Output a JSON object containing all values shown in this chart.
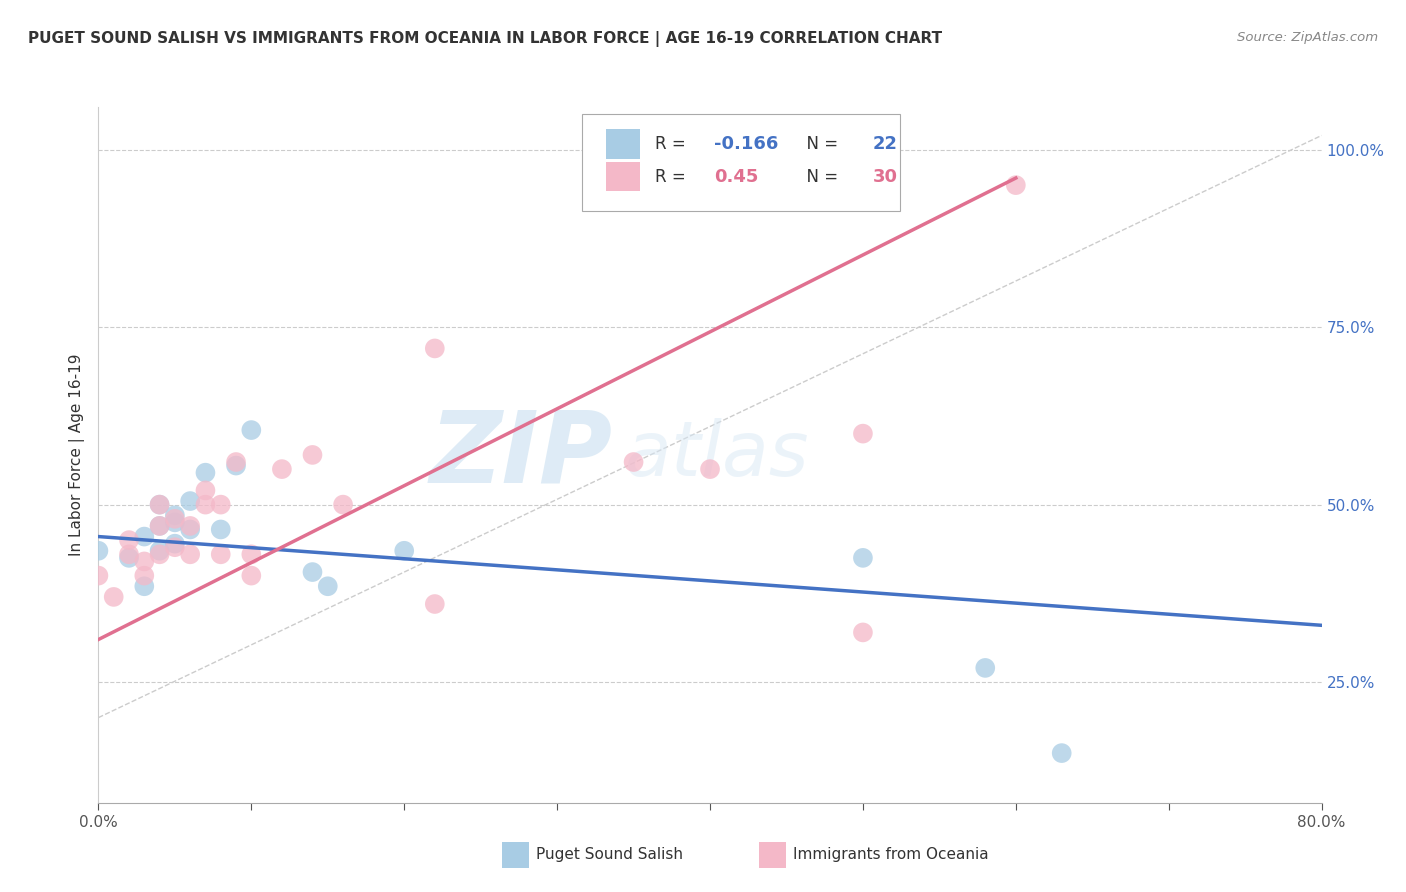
{
  "title": "PUGET SOUND SALISH VS IMMIGRANTS FROM OCEANIA IN LABOR FORCE | AGE 16-19 CORRELATION CHART",
  "source": "Source: ZipAtlas.com",
  "ylabel": "In Labor Force | Age 16-19",
  "xlim": [
    0.0,
    0.8
  ],
  "ylim": [
    0.08,
    1.06
  ],
  "xticks": [
    0.0,
    0.1,
    0.2,
    0.3,
    0.4,
    0.5,
    0.6,
    0.7,
    0.8
  ],
  "yticks": [
    0.25,
    0.5,
    0.75,
    1.0
  ],
  "blue_R": -0.166,
  "blue_N": 22,
  "pink_R": 0.45,
  "pink_N": 30,
  "blue_color": "#a8cce4",
  "pink_color": "#f4b8c8",
  "blue_line_color": "#4472c4",
  "pink_line_color": "#e07090",
  "blue_scatter_x": [
    0.0,
    0.02,
    0.03,
    0.03,
    0.04,
    0.04,
    0.04,
    0.05,
    0.05,
    0.05,
    0.06,
    0.06,
    0.07,
    0.08,
    0.09,
    0.1,
    0.14,
    0.15,
    0.2,
    0.5,
    0.58,
    0.63
  ],
  "blue_scatter_y": [
    0.435,
    0.425,
    0.385,
    0.455,
    0.435,
    0.47,
    0.5,
    0.445,
    0.475,
    0.485,
    0.465,
    0.505,
    0.545,
    0.465,
    0.555,
    0.605,
    0.405,
    0.385,
    0.435,
    0.425,
    0.27,
    0.15
  ],
  "pink_scatter_x": [
    0.0,
    0.01,
    0.02,
    0.02,
    0.03,
    0.03,
    0.04,
    0.04,
    0.04,
    0.05,
    0.05,
    0.06,
    0.06,
    0.07,
    0.07,
    0.08,
    0.08,
    0.09,
    0.1,
    0.1,
    0.12,
    0.14,
    0.16,
    0.22,
    0.22,
    0.35,
    0.4,
    0.5,
    0.5,
    0.6
  ],
  "pink_scatter_y": [
    0.4,
    0.37,
    0.43,
    0.45,
    0.4,
    0.42,
    0.43,
    0.47,
    0.5,
    0.44,
    0.48,
    0.43,
    0.47,
    0.5,
    0.52,
    0.43,
    0.5,
    0.56,
    0.4,
    0.43,
    0.55,
    0.57,
    0.5,
    0.72,
    0.36,
    0.56,
    0.55,
    0.32,
    0.6,
    0.95
  ],
  "blue_line_x0": 0.0,
  "blue_line_y0": 0.455,
  "blue_line_x1": 0.8,
  "blue_line_y1": 0.33,
  "pink_line_x0": 0.0,
  "pink_line_y0": 0.31,
  "pink_line_x1": 0.6,
  "pink_line_y1": 0.96,
  "diag_line_x0": 0.0,
  "diag_line_y0": 0.2,
  "diag_line_x1": 0.8,
  "diag_line_y1": 1.02
}
